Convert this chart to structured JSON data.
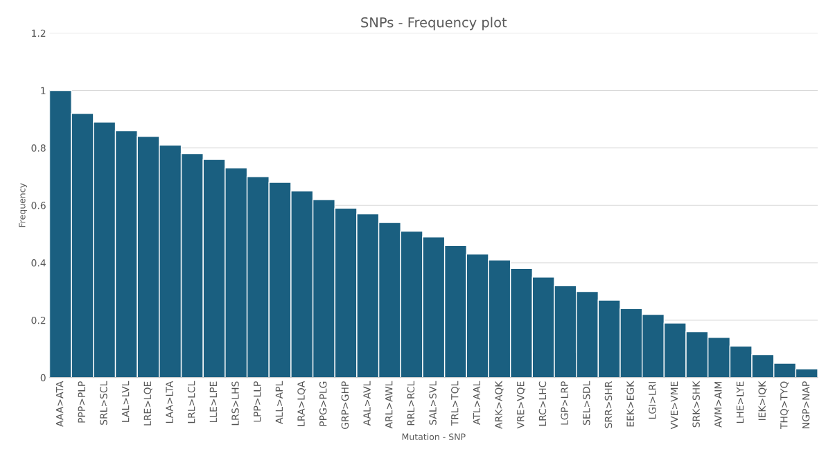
{
  "chart_data": {
    "type": "bar",
    "title": "SNPs - Frequency plot",
    "xlabel": "Mutation - SNP",
    "ylabel": "Frequency",
    "categories": [
      "AAA>ATA",
      "PPP>PLP",
      "SRL>SCL",
      "LAL>LVL",
      "LRE>LQE",
      "LAA>LTA",
      "LRL>LCL",
      "LLE>LPE",
      "LRS>LHS",
      "LPP>LLP",
      "ALL>APL",
      "LRA>LQA",
      "PPG>PLG",
      "GRP>GHP",
      "AAL>AVL",
      "ARL>AWL",
      "RRL>RCL",
      "SAL>SVL",
      "TRL>TQL",
      "ATL>AAL",
      "ARK>AQK",
      "VRE>VQE",
      "LRC>LHC",
      "LGP>LRP",
      "SEL>SDL",
      "SRR>SHR",
      "EEK>EGK",
      "LGI>LRI",
      "VVE>VME",
      "SRK>SHK",
      "AVM>AIM",
      "LHE>LYE",
      "IEK>IQK",
      "THQ>TYQ",
      "NGP>NAP"
    ],
    "values": [
      1.0,
      0.92,
      0.89,
      0.86,
      0.84,
      0.81,
      0.78,
      0.76,
      0.73,
      0.7,
      0.68,
      0.65,
      0.62,
      0.59,
      0.57,
      0.54,
      0.51,
      0.49,
      0.46,
      0.43,
      0.41,
      0.38,
      0.35,
      0.32,
      0.3,
      0.27,
      0.24,
      0.22,
      0.19,
      0.16,
      0.14,
      0.11,
      0.08,
      0.05,
      0.03
    ],
    "color": "#1a5f80",
    "ylim": [
      0,
      1.2
    ],
    "yticks": [
      0,
      0.2,
      0.4,
      0.6,
      0.8,
      1,
      1.2
    ],
    "grid": "y"
  }
}
